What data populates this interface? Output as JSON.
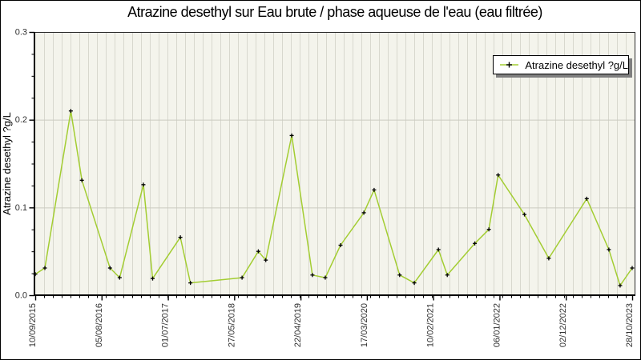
{
  "title": "Atrazine desethyl sur Eau brute / phase aqueuse de l'eau (eau filtrée)",
  "legend": {
    "label": "Atrazine desethyl ?g/L",
    "marker": "plus-on-line"
  },
  "colors": {
    "line": "#a3cd32",
    "marker": "#000000",
    "plot_bg": "#f4f4ec",
    "x_grid": "#d8d8ce",
    "y_grid": "#c9c9c0",
    "axis": "#000000",
    "tick_label": "#303030",
    "legend_shadow": "#7f7f7f"
  },
  "chart_data": {
    "type": "line",
    "title": "Atrazine desethyl sur Eau brute / phase aqueuse de l'eau (eau filtrée)",
    "xlabel": "",
    "ylabel": "Atrazine desethyl ?g/L",
    "ylim": [
      0.0,
      0.3
    ],
    "y_ticks": [
      0.0,
      0.1,
      0.2,
      0.3
    ],
    "y_minor_step": 0.025,
    "x_tick_labels": [
      "10/09/2015",
      "05/08/2016",
      "01/07/2017",
      "27/05/2018",
      "22/04/2019",
      "17/03/2020",
      "10/02/2021",
      "06/01/2022",
      "02/12/2022",
      "28/10/2023"
    ],
    "grid": true,
    "legend_position": "top-right",
    "series": [
      {
        "name": "Atrazine desethyl ?g/L",
        "color": "#a3cd32",
        "marker": "plus",
        "points": [
          {
            "date": "10/09/2015",
            "value": 0.024
          },
          {
            "date": "28/10/2015",
            "value": 0.031
          },
          {
            "date": "05/03/2016",
            "value": 0.21
          },
          {
            "date": "29/04/2016",
            "value": 0.131
          },
          {
            "date": "16/09/2016",
            "value": 0.031
          },
          {
            "date": "03/11/2016",
            "value": 0.02
          },
          {
            "date": "01/03/2017",
            "value": 0.126
          },
          {
            "date": "16/04/2017",
            "value": 0.019
          },
          {
            "date": "01/09/2017",
            "value": 0.066
          },
          {
            "date": "21/10/2017",
            "value": 0.014
          },
          {
            "date": "05/07/2018",
            "value": 0.02
          },
          {
            "date": "24/09/2018",
            "value": 0.05
          },
          {
            "date": "31/10/2018",
            "value": 0.04
          },
          {
            "date": "09/03/2019",
            "value": 0.182
          },
          {
            "date": "20/06/2019",
            "value": 0.023
          },
          {
            "date": "23/08/2019",
            "value": 0.02
          },
          {
            "date": "07/11/2019",
            "value": 0.057
          },
          {
            "date": "02/03/2020",
            "value": 0.094
          },
          {
            "date": "22/04/2020",
            "value": 0.12
          },
          {
            "date": "27/08/2020",
            "value": 0.023
          },
          {
            "date": "08/11/2020",
            "value": 0.014
          },
          {
            "date": "08/03/2021",
            "value": 0.052
          },
          {
            "date": "21/04/2021",
            "value": 0.023
          },
          {
            "date": "05/09/2021",
            "value": 0.059
          },
          {
            "date": "14/11/2021",
            "value": 0.075
          },
          {
            "date": "30/12/2021",
            "value": 0.137
          },
          {
            "date": "10/05/2022",
            "value": 0.092
          },
          {
            "date": "08/09/2022",
            "value": 0.042
          },
          {
            "date": "16/03/2023",
            "value": 0.11
          },
          {
            "date": "04/07/2023",
            "value": 0.052
          },
          {
            "date": "29/08/2023",
            "value": 0.011
          },
          {
            "date": "28/10/2023",
            "value": 0.031
          }
        ]
      }
    ]
  }
}
